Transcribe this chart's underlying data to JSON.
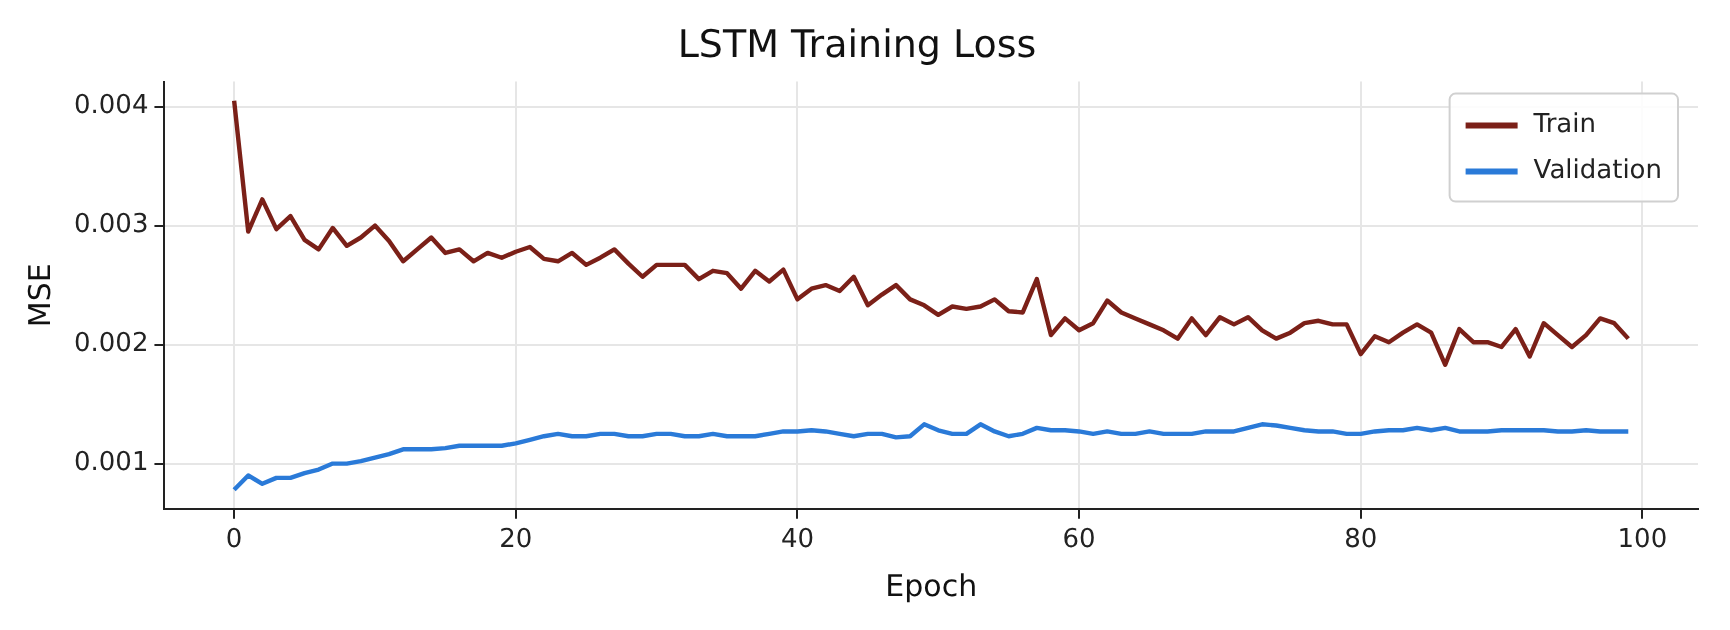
{
  "chart_data": {
    "type": "line",
    "title": "LSTM Training Loss",
    "xlabel": "Epoch",
    "ylabel": "MSE",
    "x": [
      0,
      1,
      2,
      3,
      4,
      5,
      6,
      7,
      8,
      9,
      10,
      11,
      12,
      13,
      14,
      15,
      16,
      17,
      18,
      19,
      20,
      21,
      22,
      23,
      24,
      25,
      26,
      27,
      28,
      29,
      30,
      31,
      32,
      33,
      34,
      35,
      36,
      37,
      38,
      39,
      40,
      41,
      42,
      43,
      44,
      45,
      46,
      47,
      48,
      49,
      50,
      51,
      52,
      53,
      54,
      55,
      56,
      57,
      58,
      59,
      60,
      61,
      62,
      63,
      64,
      65,
      66,
      67,
      68,
      69,
      70,
      71,
      72,
      73,
      74,
      75,
      76,
      77,
      78,
      79,
      80,
      81,
      82,
      83,
      84,
      85,
      86,
      87,
      88,
      89,
      90,
      91,
      92,
      93,
      94,
      95,
      96,
      97,
      98,
      99
    ],
    "series": [
      {
        "name": "Train",
        "color": "#7b2018",
        "values": [
          0.00405,
          0.00295,
          0.00322,
          0.00297,
          0.00308,
          0.00288,
          0.0028,
          0.00298,
          0.00283,
          0.0029,
          0.003,
          0.00287,
          0.0027,
          0.0028,
          0.0029,
          0.00277,
          0.0028,
          0.0027,
          0.00277,
          0.00273,
          0.00278,
          0.00282,
          0.00272,
          0.0027,
          0.00277,
          0.00267,
          0.00273,
          0.0028,
          0.00268,
          0.00257,
          0.00267,
          0.00267,
          0.00267,
          0.00255,
          0.00262,
          0.0026,
          0.00247,
          0.00262,
          0.00253,
          0.00263,
          0.00238,
          0.00247,
          0.0025,
          0.00245,
          0.00257,
          0.00233,
          0.00242,
          0.0025,
          0.00238,
          0.00233,
          0.00225,
          0.00232,
          0.0023,
          0.00232,
          0.00238,
          0.00228,
          0.00227,
          0.00255,
          0.00208,
          0.00222,
          0.00212,
          0.00218,
          0.00237,
          0.00227,
          0.00222,
          0.00217,
          0.00212,
          0.00205,
          0.00222,
          0.00208,
          0.00223,
          0.00217,
          0.00223,
          0.00212,
          0.00205,
          0.0021,
          0.00218,
          0.0022,
          0.00217,
          0.00217,
          0.00192,
          0.00207,
          0.00202,
          0.0021,
          0.00217,
          0.0021,
          0.00183,
          0.00213,
          0.00202,
          0.00202,
          0.00198,
          0.00213,
          0.0019,
          0.00218,
          0.00208,
          0.00198,
          0.00208,
          0.00222,
          0.00218,
          0.00205
        ]
      },
      {
        "name": "Validation",
        "color": "#2a7ad8",
        "values": [
          0.00078,
          0.0009,
          0.00083,
          0.00088,
          0.00088,
          0.00092,
          0.00095,
          0.001,
          0.001,
          0.00102,
          0.00105,
          0.00108,
          0.00112,
          0.00112,
          0.00112,
          0.00113,
          0.00115,
          0.00115,
          0.00115,
          0.00115,
          0.00117,
          0.0012,
          0.00123,
          0.00125,
          0.00123,
          0.00123,
          0.00125,
          0.00125,
          0.00123,
          0.00123,
          0.00125,
          0.00125,
          0.00123,
          0.00123,
          0.00125,
          0.00123,
          0.00123,
          0.00123,
          0.00125,
          0.00127,
          0.00127,
          0.00128,
          0.00127,
          0.00125,
          0.00123,
          0.00125,
          0.00125,
          0.00122,
          0.00123,
          0.00133,
          0.00128,
          0.00125,
          0.00125,
          0.00133,
          0.00127,
          0.00123,
          0.00125,
          0.0013,
          0.00128,
          0.00128,
          0.00127,
          0.00125,
          0.00127,
          0.00125,
          0.00125,
          0.00127,
          0.00125,
          0.00125,
          0.00125,
          0.00127,
          0.00127,
          0.00127,
          0.0013,
          0.00133,
          0.00132,
          0.0013,
          0.00128,
          0.00127,
          0.00127,
          0.00125,
          0.00125,
          0.00127,
          0.00128,
          0.00128,
          0.0013,
          0.00128,
          0.0013,
          0.00127,
          0.00127,
          0.00127,
          0.00128,
          0.00128,
          0.00128,
          0.00128,
          0.00127,
          0.00127,
          0.00128,
          0.00127,
          0.00127,
          0.00127
        ]
      }
    ],
    "xlim": [
      -4.95,
      103.95
    ],
    "xticks": [
      0,
      20,
      40,
      60,
      80,
      100
    ],
    "ylim": [
      0.00062,
      0.00421
    ],
    "yticks": [
      0.001,
      0.002,
      0.003,
      0.004
    ],
    "grid": true,
    "legend": "top right",
    "marker": "none",
    "line_style": "solid"
  }
}
